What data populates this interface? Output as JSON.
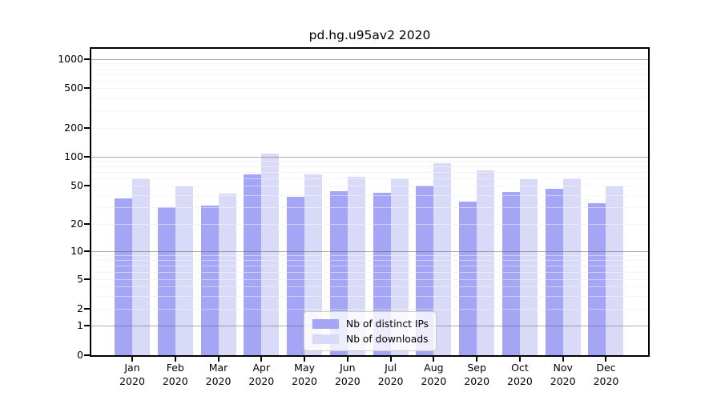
{
  "title": "pd.hg.u95av2 2020",
  "chart_data": {
    "type": "bar",
    "title": "pd.hg.u95av2 2020",
    "scale": "symlog (1-2-5 tick sequence, linear below 1)",
    "grid": "on",
    "legend_position": "inside-bottom-center",
    "ylim": [
      0,
      1300
    ],
    "y_ticks": [
      0,
      1,
      2,
      5,
      10,
      20,
      50,
      100,
      200,
      500,
      1000
    ],
    "categories": [
      {
        "month": "Jan",
        "year": "2020"
      },
      {
        "month": "Feb",
        "year": "2020"
      },
      {
        "month": "Mar",
        "year": "2020"
      },
      {
        "month": "Apr",
        "year": "2020"
      },
      {
        "month": "May",
        "year": "2020"
      },
      {
        "month": "Jun",
        "year": "2020"
      },
      {
        "month": "Jul",
        "year": "2020"
      },
      {
        "month": "Aug",
        "year": "2020"
      },
      {
        "month": "Sep",
        "year": "2020"
      },
      {
        "month": "Oct",
        "year": "2020"
      },
      {
        "month": "Nov",
        "year": "2020"
      },
      {
        "month": "Dec",
        "year": "2020"
      }
    ],
    "series": [
      {
        "key": "distinct-ips",
        "name": "Nb of distinct IPs",
        "color": "#a5a5f5",
        "values": [
          37,
          30,
          31,
          65,
          38,
          44,
          42,
          50,
          34,
          43,
          46,
          33
        ]
      },
      {
        "key": "downloads",
        "name": "Nb of downloads",
        "color": "#d9d9f8",
        "values": [
          60,
          49,
          41,
          107,
          66,
          62,
          59,
          85,
          72,
          58,
          60,
          49
        ]
      }
    ],
    "colors": {
      "axis": "#000000",
      "major_grid": "#b0b0b0",
      "minor_grid": "#ececec"
    }
  }
}
